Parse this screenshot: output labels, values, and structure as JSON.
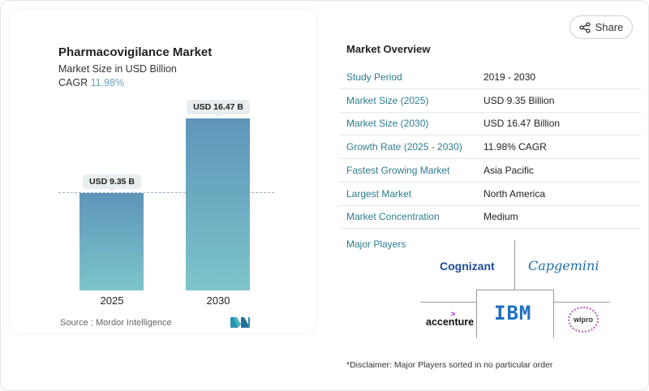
{
  "chart_data": {
    "type": "bar",
    "title": "Pharmacovigilance Market",
    "subtitle": "Market Size in USD Billion",
    "cagr_label": "CAGR",
    "cagr_value": "11.98%",
    "categories": [
      "2025",
      "2030"
    ],
    "values": [
      9.35,
      16.47
    ],
    "data_labels": [
      "USD 9.35 B",
      "USD 16.47 B"
    ],
    "colors": {
      "top": "#5e95b9",
      "bottom": "#7ec4cb"
    }
  },
  "source": "Source :  Mordor Intelligence",
  "share_label": "Share",
  "overview": {
    "title": "Market Overview",
    "rows": [
      {
        "k": "Study Period",
        "v": "2019 - 2030"
      },
      {
        "k": "Market Size (2025)",
        "v": "USD 9.35 Billion"
      },
      {
        "k": "Market Size (2030)",
        "v": "USD 16.47 Billion"
      },
      {
        "k": "Growth Rate (2025 - 2030)",
        "v": "11.98% CAGR"
      },
      {
        "k": "Fastest Growing Market",
        "v": "Asia Pacific"
      },
      {
        "k": "Largest Market",
        "v": "North America"
      },
      {
        "k": "Market Concentration",
        "v": "Medium"
      }
    ]
  },
  "players": {
    "title": "Major Players",
    "names": [
      "Cognizant",
      "Capgemini",
      "accenture",
      "IBM",
      "wipro"
    ]
  },
  "disclaimer": "*Disclaimer: Major Players sorted in no particular order"
}
